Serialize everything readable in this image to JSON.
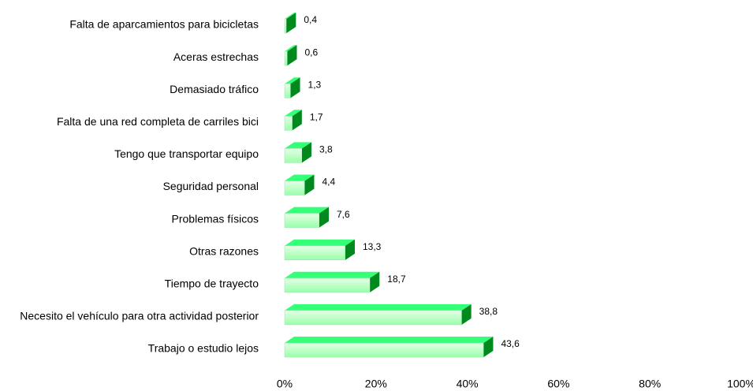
{
  "chart_data": {
    "type": "bar3d",
    "orientation": "horizontal",
    "categories": [
      "Falta de aparcamientos para bicicletas",
      "Aceras estrechas",
      "Demasiado tráfico",
      "Falta de una red completa de carriles bici",
      "Tengo que transportar equipo",
      "Seguridad personal",
      "Problemas físicos",
      "Otras razones",
      "Tiempo de trayecto",
      "Necesito el vehículo para otra actividad posterior",
      "Trabajo o estudio lejos"
    ],
    "values": [
      0.4,
      0.6,
      1.3,
      1.7,
      3.8,
      4.4,
      7.6,
      13.3,
      18.7,
      38.8,
      43.6
    ],
    "value_labels": [
      "0,4",
      "0,6",
      "1,3",
      "1,7",
      "3,8",
      "4,4",
      "7,6",
      "13,3",
      "18,7",
      "38,8",
      "43,6"
    ],
    "color": "#33ff77",
    "xlim": [
      0,
      100
    ],
    "xticks": [
      {
        "value": 0,
        "label": "0%"
      },
      {
        "value": 20,
        "label": "20%"
      },
      {
        "value": 40,
        "label": "40%"
      },
      {
        "value": 60,
        "label": "60%"
      },
      {
        "value": 80,
        "label": "80%"
      },
      {
        "value": 100,
        "label": "100%"
      }
    ],
    "grid": false
  }
}
